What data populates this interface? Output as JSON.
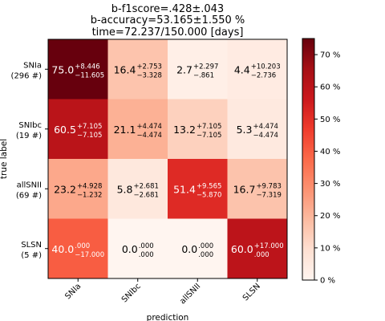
{
  "chart_data": {
    "type": "heatmap",
    "title_lines": [
      "b-f1score=.428±.043",
      "b-accuracy=53.165±1.550 %",
      "time=72.237/150.000 [days]"
    ],
    "xlabel": "prediction",
    "ylabel": "true label",
    "x_categories": [
      "SNIa",
      "SNIbc",
      "allSNII",
      "SLSN"
    ],
    "y_categories": [
      "SNIa\n(296 #)",
      "SNIbc\n(19 #)",
      "allSNII\n(69 #)",
      "SLSN\n(5 #)"
    ],
    "cells": [
      [
        {
          "value": 75.0,
          "text": "75.0",
          "plus": "+8.446",
          "minus": "−11.605"
        },
        {
          "value": 16.4,
          "text": "16.4",
          "plus": "+2.753",
          "minus": "−3.328"
        },
        {
          "value": 2.7,
          "text": "2.7",
          "plus": "+2.297",
          "minus": "−.861"
        },
        {
          "value": 4.4,
          "text": "4.4",
          "plus": "+10.203",
          "minus": "−2.736"
        }
      ],
      [
        {
          "value": 60.5,
          "text": "60.5",
          "plus": "+7.105",
          "minus": "−7.105"
        },
        {
          "value": 21.1,
          "text": "21.1",
          "plus": "+4.474",
          "minus": "−4.474"
        },
        {
          "value": 13.2,
          "text": "13.2",
          "plus": "+7.105",
          "minus": "−7.105"
        },
        {
          "value": 5.3,
          "text": "5.3",
          "plus": "+4.474",
          "minus": "−4.474"
        }
      ],
      [
        {
          "value": 23.2,
          "text": "23.2",
          "plus": "+4.928",
          "minus": "−1.232"
        },
        {
          "value": 5.8,
          "text": "5.8",
          "plus": "+2.681",
          "minus": "−2.681"
        },
        {
          "value": 51.4,
          "text": "51.4",
          "plus": "+9.565",
          "minus": "−5.870"
        },
        {
          "value": 16.7,
          "text": "16.7",
          "plus": "+9.783",
          "minus": "−7.319"
        }
      ],
      [
        {
          "value": 40.0,
          "text": "40.0",
          "plus": ".000",
          "minus": "−17.000"
        },
        {
          "value": 0.0,
          "text": "0.0",
          "plus": ".000",
          "minus": ".000"
        },
        {
          "value": 0.0,
          "text": "0.0",
          "plus": ".000",
          "minus": ".000"
        },
        {
          "value": 60.0,
          "text": "60.0",
          "plus": "+17.000",
          "minus": ".000"
        }
      ]
    ],
    "colorbar": {
      "ticks": [
        "0 %",
        "10 %",
        "20 %",
        "30 %",
        "40 %",
        "50 %",
        "60 %",
        "70 %"
      ],
      "tick_values": [
        0,
        10,
        20,
        30,
        40,
        50,
        60,
        70
      ],
      "vmin": 0,
      "vmax": 75,
      "colormap": "Reds"
    }
  }
}
